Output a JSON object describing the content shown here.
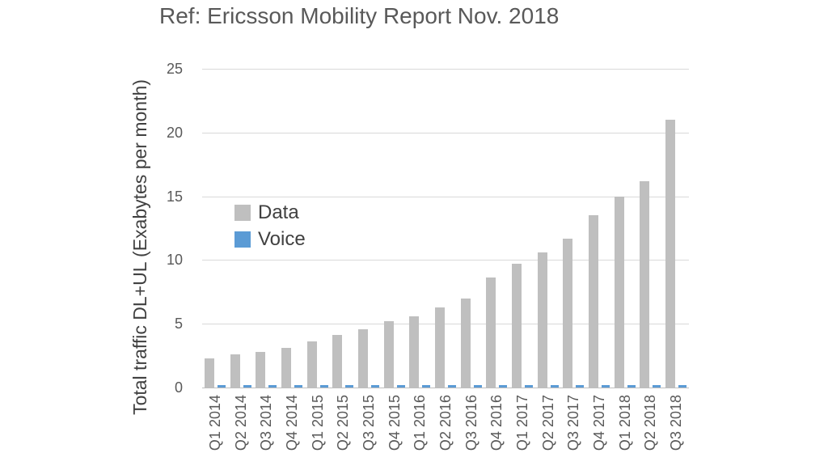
{
  "chart_data": {
    "type": "bar",
    "title": "Ref: Ericsson Mobility Report Nov. 2018",
    "ylabel": "Total traffic DL+UL (Exabytes per month)",
    "xlabel": "",
    "ylim": [
      0,
      25
    ],
    "yticks": [
      0,
      5,
      10,
      15,
      20,
      25
    ],
    "grid": true,
    "legend_position": "inside-top-left",
    "categories": [
      "Q1 2014",
      "Q2 2014",
      "Q3 2014",
      "Q4 2014",
      "Q1 2015",
      "Q2 2015",
      "Q3 2015",
      "Q4 2015",
      "Q1 2016",
      "Q2 2016",
      "Q3 2016",
      "Q4 2016",
      "Q1 2017",
      "Q2 2017",
      "Q3 2017",
      "Q4 2017",
      "Q1 2018",
      "Q2 2018",
      "Q3 2018"
    ],
    "series": [
      {
        "name": "Data",
        "color": "#BFBFBF",
        "values": [
          2.3,
          2.6,
          2.8,
          3.1,
          3.6,
          4.1,
          4.6,
          5.2,
          5.6,
          6.3,
          7.0,
          8.6,
          9.7,
          10.6,
          11.7,
          13.5,
          15.0,
          16.2,
          21.0
        ]
      },
      {
        "name": "Voice",
        "color": "#5B9BD5",
        "values": [
          0.2,
          0.2,
          0.2,
          0.2,
          0.2,
          0.2,
          0.2,
          0.2,
          0.2,
          0.2,
          0.2,
          0.2,
          0.2,
          0.2,
          0.2,
          0.2,
          0.2,
          0.2,
          0.2
        ]
      }
    ]
  },
  "colors": {
    "background": "#FFFFFF",
    "title_text": "#595959",
    "tick_text": "#595959",
    "ylabel_text": "#404040",
    "legend_text": "#404040",
    "gridline": "#D9D9D9",
    "axis_line": "#BFBFBF"
  }
}
